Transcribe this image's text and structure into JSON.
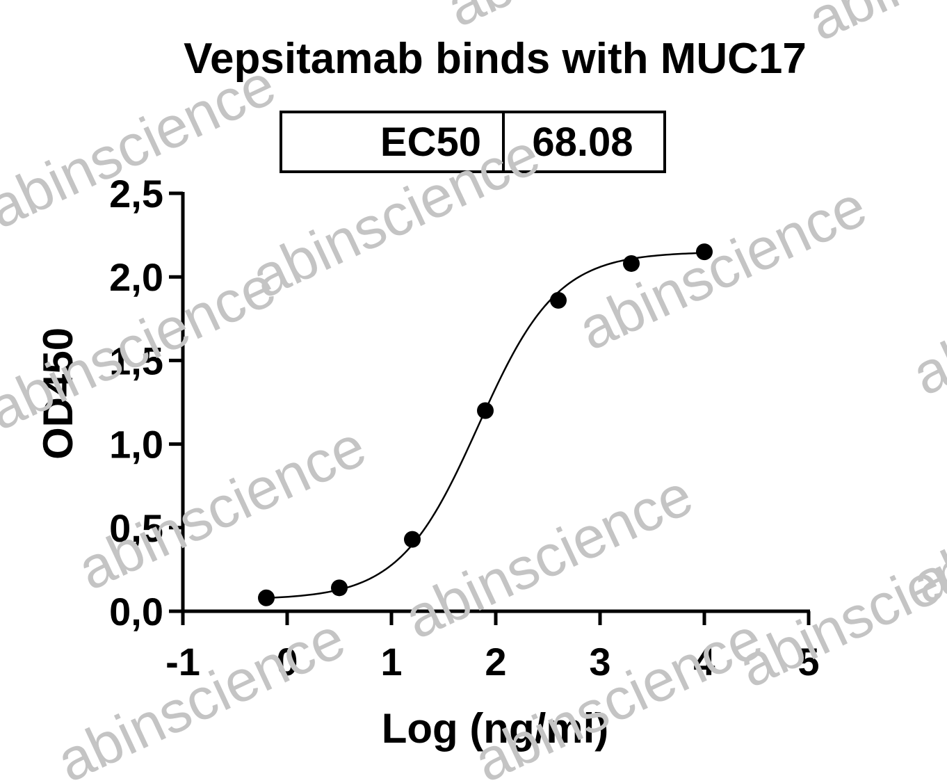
{
  "chart_data": {
    "type": "scatter",
    "title": "Vepsitamab binds with MUC17",
    "xlabel": "Log (ng/ml)",
    "ylabel": "OD450",
    "xlim": [
      -1,
      5
    ],
    "ylim": [
      0,
      2.5
    ],
    "x_ticks": [
      "-1",
      "0",
      "1",
      "2",
      "3",
      "4",
      "5"
    ],
    "y_ticks": [
      "0,0",
      "0,5",
      "1,0",
      "1,5",
      "2,0",
      "2,5"
    ],
    "ec50_table": {
      "label": "EC50",
      "value": "68.08"
    },
    "points": [
      {
        "x": -0.2,
        "y": 0.08
      },
      {
        "x": 0.5,
        "y": 0.14
      },
      {
        "x": 1.2,
        "y": 0.43
      },
      {
        "x": 1.9,
        "y": 1.2
      },
      {
        "x": 2.6,
        "y": 1.86
      },
      {
        "x": 3.3,
        "y": 2.08
      },
      {
        "x": 4.0,
        "y": 2.15
      }
    ],
    "fit": {
      "model": "4PL sigmoid",
      "bottom": 0.07,
      "top": 2.15,
      "log_ec50": 1.833,
      "hill": 1.15,
      "x_range": [
        -0.2,
        4.0
      ]
    },
    "grid": false,
    "legend": "none"
  },
  "watermark": "abinscience"
}
